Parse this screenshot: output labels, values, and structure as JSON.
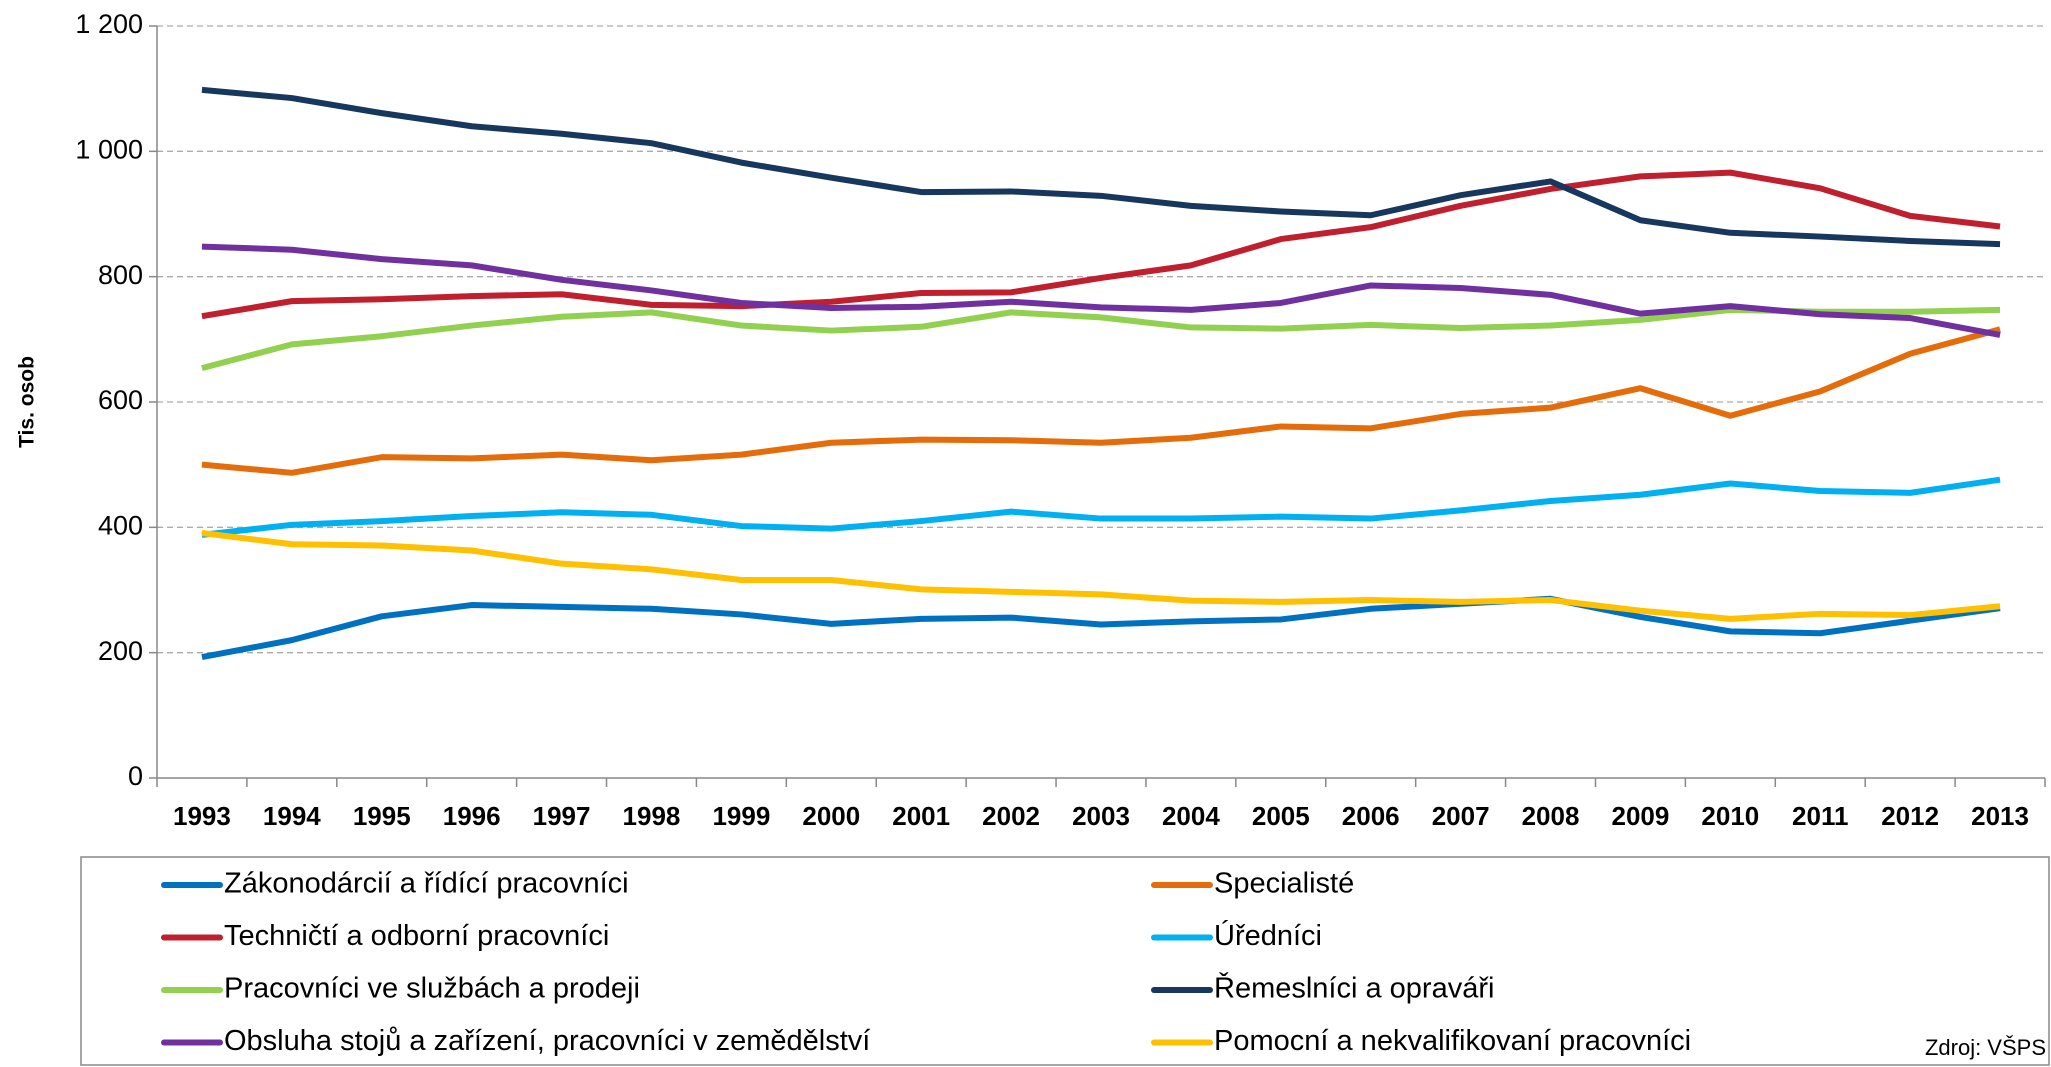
{
  "chart_data": {
    "type": "line",
    "y_label": "Tis. osob",
    "source": "Zdroj: VŠPS",
    "categories": [
      "1993",
      "1994",
      "1995",
      "1996",
      "1997",
      "1998",
      "1999",
      "2000",
      "2001",
      "2002",
      "2003",
      "2004",
      "2005",
      "2006",
      "2007",
      "2008",
      "2009",
      "2010",
      "2011",
      "2012",
      "2013"
    ],
    "ylim": [
      0,
      1200
    ],
    "yticks": [
      0,
      200,
      400,
      600,
      800,
      {
        "value": 1000,
        "label": "1 000"
      },
      {
        "value": 1200,
        "label": "1 200"
      }
    ],
    "grid": true,
    "series": [
      {
        "name": "Zákonodárcií a řídící pracovníci",
        "color": "#0070c0",
        "values": [
          193,
          220,
          258,
          276,
          273,
          270,
          261,
          246,
          254,
          256,
          245,
          250,
          253,
          270,
          278,
          286,
          257,
          234,
          231,
          251,
          271
        ]
      },
      {
        "name": "Specialisté",
        "color": "#e46c0a",
        "values": [
          500,
          487,
          512,
          510,
          516,
          507,
          516,
          535,
          540,
          539,
          535,
          543,
          561,
          558,
          581,
          591,
          622,
          578,
          617,
          677,
          716
        ]
      },
      {
        "name": "Techničtí a odborní pracovníci",
        "color": "#c0202e",
        "values": [
          737,
          761,
          764,
          769,
          772,
          755,
          753,
          760,
          774,
          775,
          798,
          818,
          860,
          879,
          913,
          940,
          960,
          966,
          941,
          897,
          880
        ]
      },
      {
        "name": "Úředníci",
        "color": "#00b0f0",
        "values": [
          388,
          404,
          410,
          418,
          424,
          420,
          402,
          398,
          410,
          425,
          414,
          414,
          417,
          414,
          427,
          442,
          452,
          470,
          458,
          455,
          476
        ]
      },
      {
        "name": "Pracovníci ve službách a prodeji",
        "color": "#92d050",
        "values": [
          654,
          692,
          705,
          722,
          736,
          743,
          722,
          714,
          720,
          743,
          735,
          719,
          717,
          723,
          718,
          722,
          731,
          747,
          744,
          744,
          747
        ]
      },
      {
        "name": "Řemeslníci a opraváři",
        "color": "#17375e",
        "values": [
          1098,
          1085,
          1061,
          1040,
          1028,
          1013,
          982,
          958,
          935,
          936,
          929,
          913,
          904,
          898,
          930,
          952,
          890,
          870,
          864,
          857,
          852
        ]
      },
      {
        "name": "Obsluha stojů a zařízení, pracovníci v zemědělství",
        "color": "#7030a0",
        "values": [
          848,
          843,
          828,
          818,
          795,
          778,
          758,
          750,
          752,
          760,
          751,
          747,
          758,
          786,
          782,
          771,
          741,
          753,
          740,
          734,
          707
        ]
      },
      {
        "name": "Pomocní a nekvalifikovaní pracovníci",
        "color": "#ffc000",
        "values": [
          391,
          373,
          371,
          363,
          342,
          333,
          316,
          316,
          301,
          297,
          293,
          283,
          281,
          284,
          281,
          284,
          267,
          254,
          262,
          260,
          274
        ]
      }
    ]
  }
}
